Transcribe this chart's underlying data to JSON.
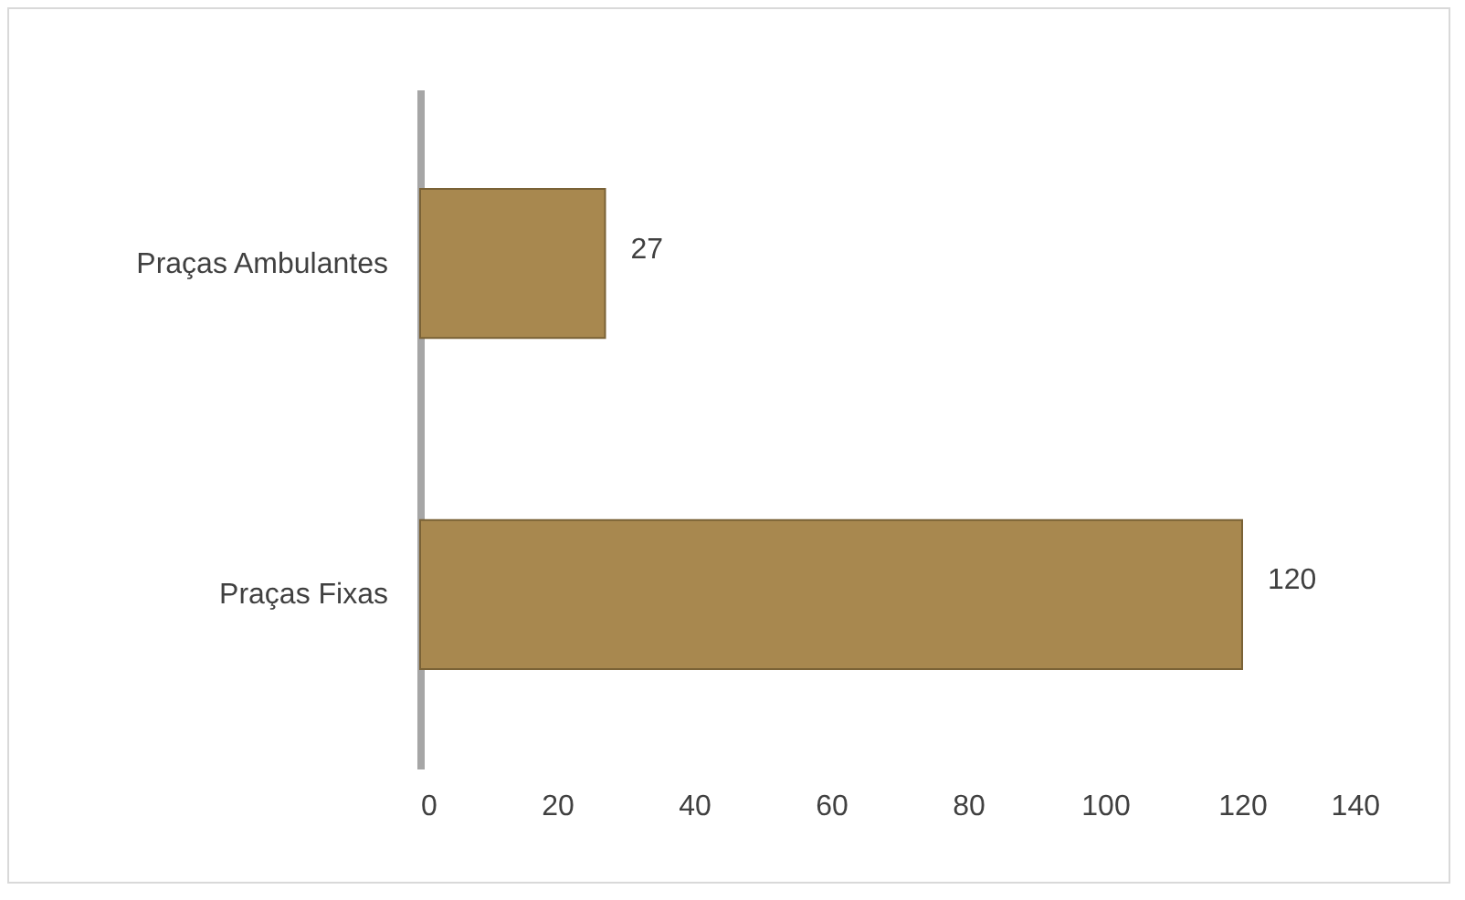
{
  "chart_data": {
    "type": "bar",
    "orientation": "horizontal",
    "categories": [
      "Praças Ambulantes",
      "Praças Fixas"
    ],
    "values": [
      27,
      120
    ],
    "color": "#a8884f",
    "xlim": [
      0,
      140
    ],
    "xticks": [
      0,
      20,
      40,
      60,
      80,
      100,
      120,
      140
    ],
    "data_labels": true,
    "grid": false
  }
}
